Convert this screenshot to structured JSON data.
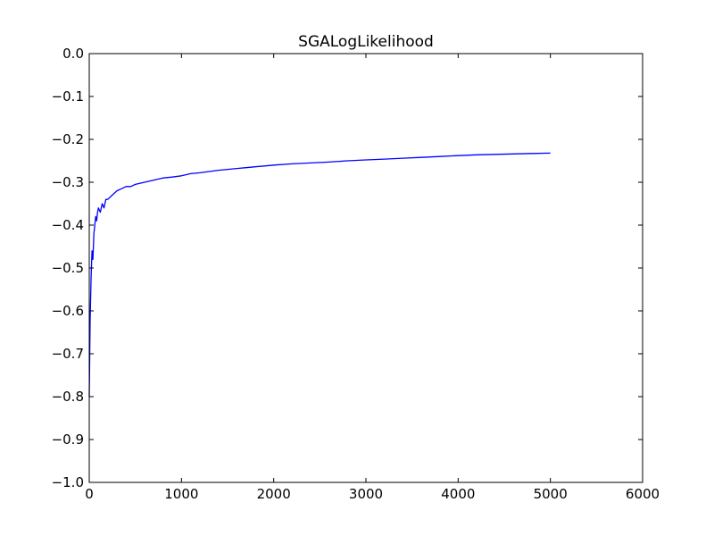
{
  "chart_data": {
    "type": "line",
    "title": "SGALogLikelihood",
    "xlabel": "",
    "ylabel": "",
    "xlim": [
      0,
      6000
    ],
    "ylim": [
      -1.0,
      0.0
    ],
    "xticks": [
      0,
      1000,
      2000,
      3000,
      4000,
      5000,
      6000
    ],
    "xtick_labels": [
      "0",
      "1000",
      "2000",
      "3000",
      "4000",
      "5000",
      "6000"
    ],
    "yticks": [
      0.0,
      -0.1,
      -0.2,
      -0.3,
      -0.4,
      -0.5,
      -0.6,
      -0.7,
      -0.8,
      -0.9,
      -1.0
    ],
    "ytick_labels": [
      "0.0",
      "−0.1",
      "−0.2",
      "−0.3",
      "−0.4",
      "−0.5",
      "−0.6",
      "−0.7",
      "−0.8",
      "−0.9",
      "−1.0"
    ],
    "grid": false,
    "series": [
      {
        "color": "#0000ff",
        "x": [
          0,
          10,
          20,
          30,
          40,
          50,
          60,
          70,
          80,
          90,
          100,
          120,
          140,
          160,
          180,
          200,
          250,
          300,
          350,
          400,
          450,
          500,
          600,
          700,
          800,
          900,
          1000,
          1100,
          1200,
          1300,
          1400,
          1500,
          1600,
          1700,
          1800,
          1900,
          2000,
          2200,
          2400,
          2600,
          2800,
          3000,
          3200,
          3400,
          3600,
          3800,
          4000,
          4200,
          4400,
          4600,
          4800,
          5000
        ],
        "y": [
          -0.8,
          -0.62,
          -0.52,
          -0.46,
          -0.48,
          -0.42,
          -0.4,
          -0.38,
          -0.39,
          -0.37,
          -0.36,
          -0.37,
          -0.35,
          -0.36,
          -0.34,
          -0.34,
          -0.33,
          -0.32,
          -0.315,
          -0.31,
          -0.31,
          -0.305,
          -0.3,
          -0.295,
          -0.29,
          -0.288,
          -0.285,
          -0.28,
          -0.278,
          -0.275,
          -0.272,
          -0.27,
          -0.268,
          -0.266,
          -0.264,
          -0.262,
          -0.26,
          -0.257,
          -0.255,
          -0.253,
          -0.25,
          -0.248,
          -0.246,
          -0.244,
          -0.242,
          -0.24,
          -0.238,
          -0.236,
          -0.235,
          -0.234,
          -0.233,
          -0.232
        ]
      }
    ]
  }
}
